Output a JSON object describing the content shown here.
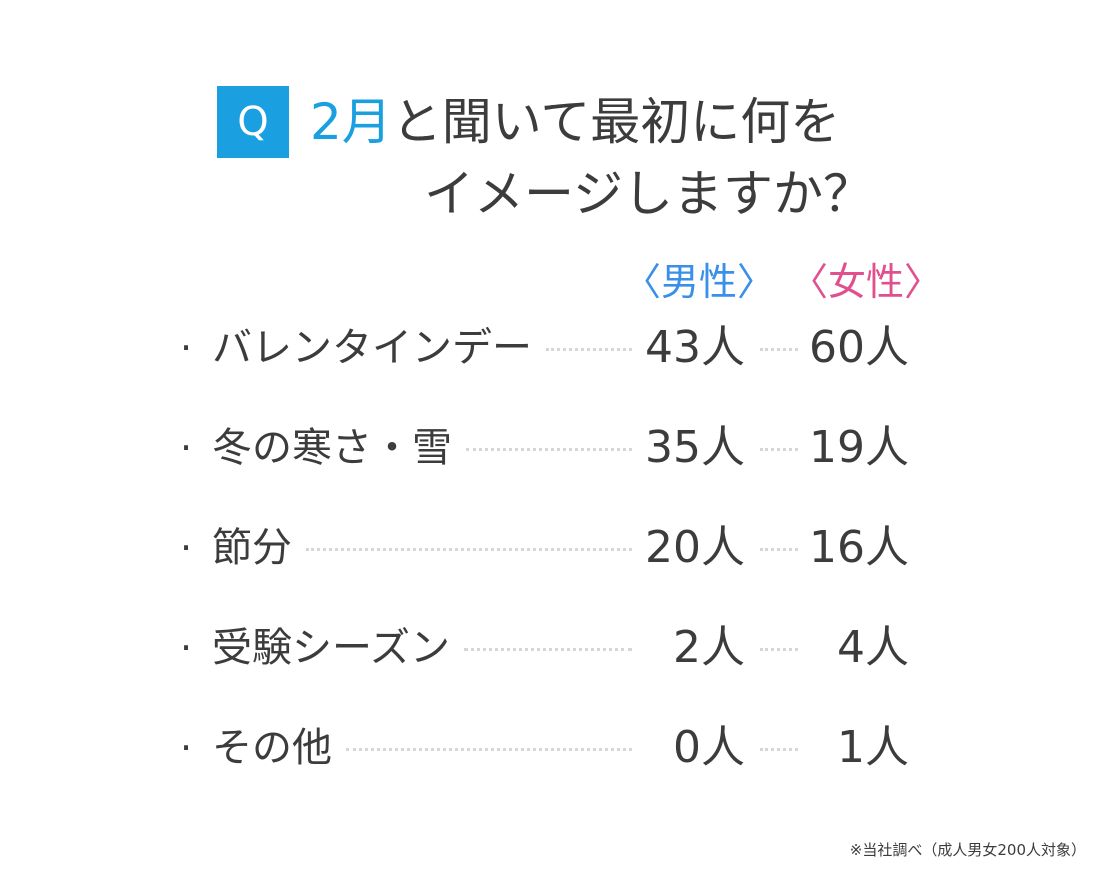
{
  "chart_data": {
    "type": "table",
    "title": {
      "badge": "Q",
      "line1_accent": "2月",
      "line1_rest": "と聞いて最初に何を",
      "line2": "イメージしますか？"
    },
    "columns": [
      "〈男性〉",
      "〈女性〉"
    ],
    "unit": "人",
    "rows": [
      {
        "category": "バレンタインデー",
        "male": 43,
        "female": 60
      },
      {
        "category": "冬の寒さ・雪",
        "male": 35,
        "female": 19
      },
      {
        "category": "節分",
        "male": 20,
        "female": 16
      },
      {
        "category": "受験シーズン",
        "male": 2,
        "female": 4
      },
      {
        "category": "その他",
        "male": 0,
        "female": 1
      }
    ],
    "footnote": "※当社調べ（成人男女200人対象）"
  },
  "colors": {
    "accent": "#1a9fe0",
    "male": "#3a8fe8",
    "female": "#e0508f",
    "text": "#3c3c3c"
  }
}
